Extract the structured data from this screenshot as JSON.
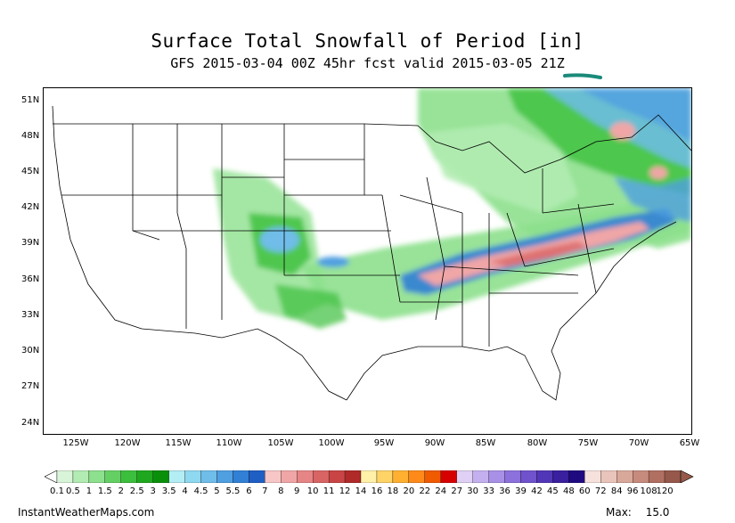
{
  "title": "Surface Total Snowfall of Period [in]",
  "subtitle": "GFS 2015-03-04 00Z 45hr fcst valid 2015-03-05 21Z",
  "lat_labels": [
    "51N",
    "48N",
    "45N",
    "42N",
    "39N",
    "36N",
    "33N",
    "30N",
    "27N",
    "24N"
  ],
  "lon_labels": [
    "125W",
    "120W",
    "115W",
    "110W",
    "105W",
    "100W",
    "95W",
    "90W",
    "85W",
    "80W",
    "75W",
    "70W",
    "65W"
  ],
  "colorbar": {
    "labels": [
      "0.1",
      "0.5",
      "1",
      "1.5",
      "2",
      "2.5",
      "3",
      "3.5",
      "4",
      "4.5",
      "5",
      "5.5",
      "6",
      "7",
      "8",
      "9",
      "10",
      "11",
      "12",
      "14",
      "16",
      "18",
      "20",
      "22",
      "24",
      "27",
      "30",
      "33",
      "36",
      "39",
      "42",
      "45",
      "48",
      "60",
      "72",
      "84",
      "96",
      "108",
      "120"
    ],
    "colors": [
      "#d9f5d9",
      "#b3ecb3",
      "#8de08d",
      "#64d064",
      "#3cbf3c",
      "#1fa81f",
      "#0a8f0a",
      "#b3eef5",
      "#8ed8f0",
      "#6fbde9",
      "#4f9fe1",
      "#3180d6",
      "#1f5fc4",
      "#f7c6c6",
      "#f0a6a6",
      "#e68585",
      "#d96464",
      "#c94545",
      "#b02a2a",
      "#fff2a8",
      "#ffd466",
      "#ffb030",
      "#ff8a1a",
      "#f05a00",
      "#d60000",
      "#e0d0f5",
      "#c4b0ef",
      "#a890e6",
      "#8c70dc",
      "#6f52cc",
      "#5236b8",
      "#3a1f9e",
      "#200a80",
      "#f7e1dc",
      "#e8c4bb",
      "#d8a89b",
      "#c68b7c",
      "#b06f60",
      "#95584a"
    ]
  },
  "website": "InstantWeatherMaps.com",
  "max_label": "Max:",
  "max_value": "15.0"
}
